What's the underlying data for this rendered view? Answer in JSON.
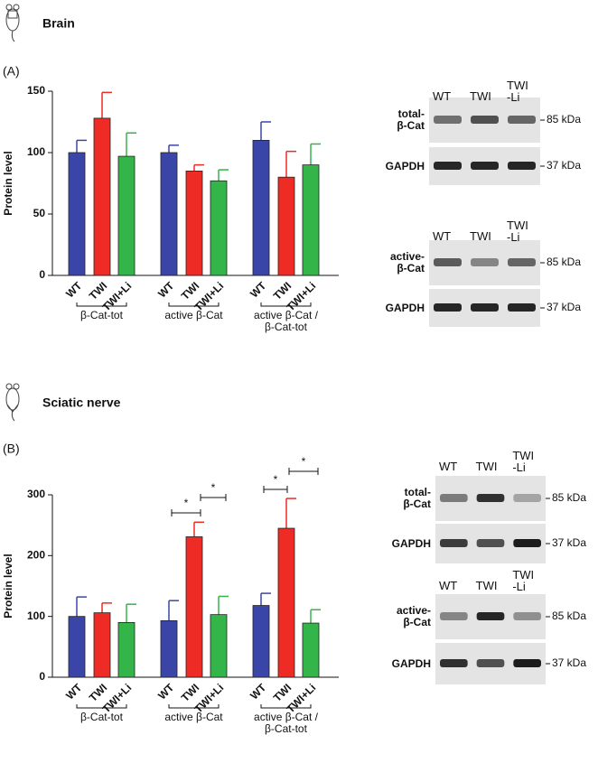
{
  "sections": [
    {
      "title": "Brain",
      "panel": "(A)"
    },
    {
      "title": "Sciatic nerve",
      "panel": "(B)"
    }
  ],
  "chart_data": [
    {
      "type": "bar",
      "ylabel": "Protein level",
      "categories": [
        "β-Cat-tot",
        "active β-Cat",
        "active β-Cat /\nβ-Cat-tot"
      ],
      "series": [
        {
          "name": "WT",
          "color": "#3a45a8",
          "values": [
            100,
            100,
            110
          ],
          "errors": [
            10,
            6,
            15
          ]
        },
        {
          "name": "TWI",
          "color": "#ee2b24",
          "values": [
            128,
            85,
            80
          ],
          "errors": [
            21,
            5,
            21
          ]
        },
        {
          "name": "TWI+Li",
          "color": "#33b54a",
          "values": [
            97,
            77,
            90
          ],
          "errors": [
            19,
            9,
            17
          ]
        }
      ],
      "ylim": [
        0,
        150
      ],
      "yticks": [
        0,
        50,
        100,
        150
      ]
    },
    {
      "type": "bar",
      "ylabel": "Protein level",
      "categories": [
        "β-Cat-tot",
        "active β-Cat",
        "active β-Cat /\nβ-Cat-tot"
      ],
      "series": [
        {
          "name": "WT",
          "color": "#3a45a8",
          "values": [
            100,
            93,
            118
          ],
          "errors": [
            32,
            33,
            20
          ]
        },
        {
          "name": "TWI",
          "color": "#ee2b24",
          "values": [
            106,
            231,
            245
          ],
          "errors": [
            16,
            24,
            49
          ]
        },
        {
          "name": "TWI+Li",
          "color": "#33b54a",
          "values": [
            90,
            103,
            89
          ],
          "errors": [
            30,
            30,
            22
          ]
        }
      ],
      "ylim": [
        0,
        300
      ],
      "yticks": [
        0,
        100,
        200,
        300
      ],
      "annotations": [
        {
          "text": "*"
        },
        {
          "text": "*"
        },
        {
          "text": "*"
        },
        {
          "text": "*"
        }
      ]
    }
  ],
  "blots": [
    {
      "lanes": [
        "WT",
        "TWI",
        "TWI\n-Li"
      ],
      "rows": [
        {
          "label": "total-\nβ-Cat",
          "kda": "85 kDa"
        },
        {
          "label": "GAPDH",
          "kda": "37 kDa"
        }
      ]
    },
    {
      "lanes": [
        "WT",
        "TWI",
        "TWI\n-Li"
      ],
      "rows": [
        {
          "label": "active-\nβ-Cat",
          "kda": "85 kDa"
        },
        {
          "label": "GAPDH",
          "kda": "37 kDa"
        }
      ]
    },
    {
      "lanes": [
        "WT",
        "TWI",
        "TWI\n-Li"
      ],
      "rows": [
        {
          "label": "total-\nβ-Cat",
          "kda": "85 kDa"
        },
        {
          "label": "GAPDH",
          "kda": "37 kDa"
        }
      ]
    },
    {
      "lanes": [
        "WT",
        "TWI",
        "TWI\n-Li"
      ],
      "rows": [
        {
          "label": "active-\nβ-Cat",
          "kda": "85 kDa"
        },
        {
          "label": "GAPDH",
          "kda": "37 kDa"
        }
      ]
    }
  ]
}
